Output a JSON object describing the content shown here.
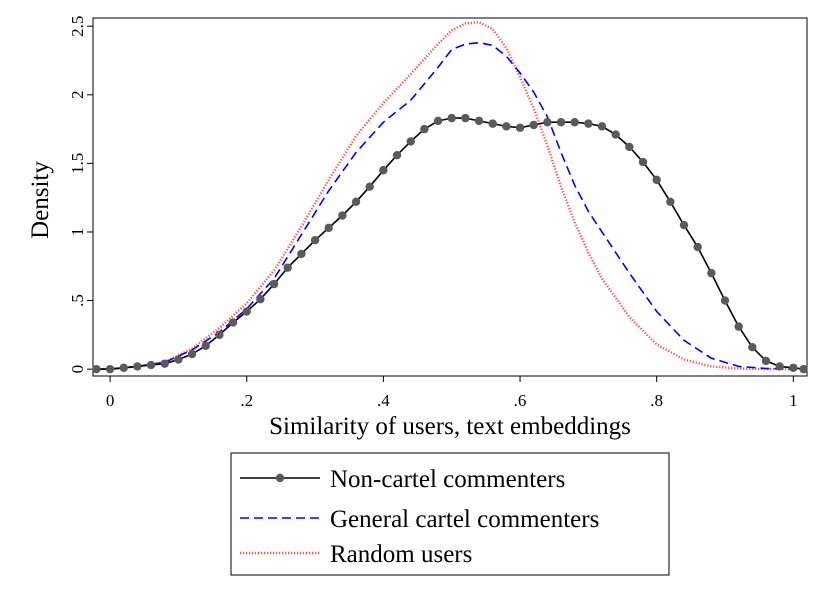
{
  "chart_data": {
    "type": "line",
    "title": "",
    "xlabel": "Similarity of users, text embeddings",
    "ylabel": "Density",
    "xlim": [
      -0.025,
      1.02
    ],
    "ylim": [
      -0.05,
      2.56
    ],
    "xticks": [
      0,
      0.2,
      0.4,
      0.6,
      0.8,
      1
    ],
    "xtick_labels": [
      "0",
      ".2",
      ".4",
      ".6",
      ".8",
      "1"
    ],
    "yticks": [
      0,
      0.5,
      1,
      1.5,
      2,
      2.5
    ],
    "ytick_labels": [
      "0",
      ".5",
      "1",
      "1.5",
      "2",
      "2.5"
    ],
    "grid": false,
    "legend_position": "bottom-center",
    "series": [
      {
        "name": "Non-cartel commenters",
        "color": "#000000",
        "marker_color": "#5a5a5a",
        "style": "solid-with-markers",
        "x": [
          -0.02,
          0.0,
          0.02,
          0.04,
          0.06,
          0.08,
          0.1,
          0.12,
          0.14,
          0.16,
          0.18,
          0.2,
          0.22,
          0.24,
          0.26,
          0.28,
          0.3,
          0.32,
          0.34,
          0.36,
          0.38,
          0.4,
          0.42,
          0.44,
          0.46,
          0.48,
          0.5,
          0.52,
          0.54,
          0.56,
          0.58,
          0.6,
          0.62,
          0.64,
          0.66,
          0.68,
          0.7,
          0.72,
          0.74,
          0.76,
          0.78,
          0.8,
          0.82,
          0.84,
          0.86,
          0.88,
          0.9,
          0.92,
          0.94,
          0.96,
          0.98,
          1.0,
          1.015
        ],
        "y": [
          0.0,
          0.0,
          0.01,
          0.02,
          0.03,
          0.04,
          0.07,
          0.11,
          0.17,
          0.25,
          0.34,
          0.42,
          0.51,
          0.62,
          0.74,
          0.84,
          0.94,
          1.03,
          1.12,
          1.22,
          1.33,
          1.45,
          1.56,
          1.66,
          1.75,
          1.81,
          1.83,
          1.83,
          1.81,
          1.79,
          1.77,
          1.76,
          1.78,
          1.8,
          1.8,
          1.8,
          1.79,
          1.77,
          1.71,
          1.62,
          1.51,
          1.38,
          1.22,
          1.05,
          0.89,
          0.7,
          0.5,
          0.31,
          0.16,
          0.06,
          0.02,
          0.01,
          0.0
        ]
      },
      {
        "name": "General cartel commenters",
        "color": "#0000ff",
        "style": "dashed",
        "x": [
          -0.02,
          0.0,
          0.04,
          0.08,
          0.12,
          0.16,
          0.2,
          0.24,
          0.28,
          0.32,
          0.36,
          0.4,
          0.44,
          0.48,
          0.5,
          0.52,
          0.54,
          0.56,
          0.58,
          0.6,
          0.62,
          0.64,
          0.66,
          0.68,
          0.7,
          0.72,
          0.76,
          0.8,
          0.84,
          0.88,
          0.92,
          0.96,
          1.0
        ],
        "y": [
          0.0,
          0.0,
          0.02,
          0.05,
          0.14,
          0.27,
          0.44,
          0.66,
          0.98,
          1.3,
          1.58,
          1.8,
          1.96,
          2.2,
          2.33,
          2.37,
          2.38,
          2.36,
          2.28,
          2.16,
          2.02,
          1.84,
          1.58,
          1.34,
          1.15,
          1.0,
          0.7,
          0.42,
          0.21,
          0.08,
          0.02,
          0.005,
          0.0
        ]
      },
      {
        "name": "Random users",
        "color": "#ff4a4a",
        "style": "dotted",
        "x": [
          -0.02,
          0.0,
          0.04,
          0.08,
          0.12,
          0.16,
          0.2,
          0.24,
          0.28,
          0.32,
          0.36,
          0.4,
          0.44,
          0.48,
          0.5,
          0.52,
          0.54,
          0.56,
          0.58,
          0.6,
          0.62,
          0.64,
          0.66,
          0.68,
          0.7,
          0.72,
          0.76,
          0.8,
          0.84,
          0.88,
          0.92,
          0.96,
          1.0
        ],
        "y": [
          0.0,
          0.0,
          0.02,
          0.05,
          0.15,
          0.3,
          0.48,
          0.72,
          1.04,
          1.38,
          1.7,
          1.94,
          2.15,
          2.37,
          2.47,
          2.52,
          2.53,
          2.48,
          2.34,
          2.13,
          1.9,
          1.63,
          1.33,
          1.07,
          0.85,
          0.66,
          0.38,
          0.18,
          0.07,
          0.02,
          0.005,
          0.0,
          0.0
        ]
      }
    ]
  }
}
